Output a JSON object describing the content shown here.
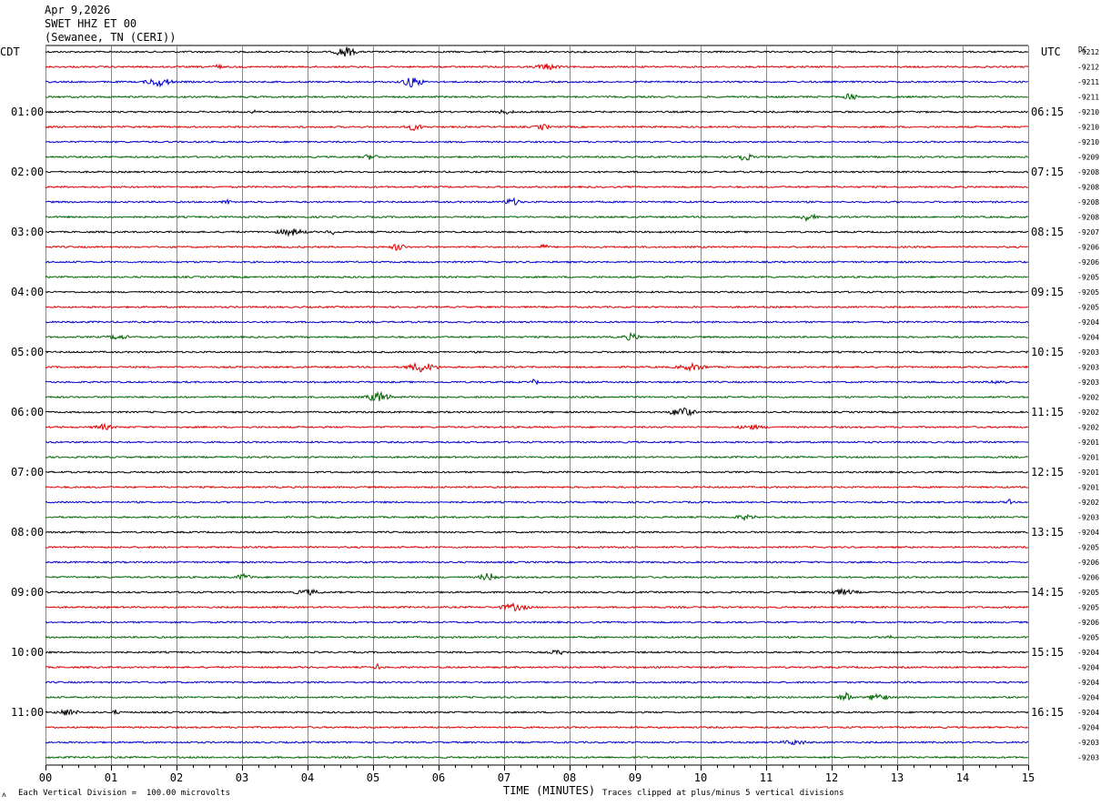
{
  "header": {
    "date": "Apr 9,2026",
    "station": "SWET HHZ ET 00",
    "location": "(Sewanee, TN (CERI))"
  },
  "left_timezone": "CDT",
  "right_timezone": "UTC",
  "dc_label": "DC",
  "footer": {
    "scale_note": "Each Vertical Division =  100.00 microvolts",
    "clip_note": "Traces clipped at plus/minus 5 vertical divisions",
    "corner_mark": "ᴧ"
  },
  "chart_data": {
    "type": "line",
    "title": "",
    "xlabel": "TIME (MINUTES)",
    "ylabel": "",
    "xlim": [
      0,
      15
    ],
    "x_ticks": [
      "00",
      "01",
      "02",
      "03",
      "04",
      "05",
      "06",
      "07",
      "08",
      "09",
      "10",
      "11",
      "12",
      "13",
      "14",
      "15"
    ],
    "grid": "vertical lines at each minute",
    "trace_colors": [
      "#000000",
      "#dd0000",
      "#0000cc",
      "#006600"
    ],
    "left_hour_labels": [
      "01:00",
      "02:00",
      "03:00",
      "04:00",
      "05:00",
      "06:00",
      "07:00",
      "08:00",
      "09:00",
      "10:00",
      "11:00"
    ],
    "right_hour_labels": [
      "06:15",
      "07:15",
      "08:15",
      "09:15",
      "10:15",
      "11:15",
      "12:15",
      "13:15",
      "14:15",
      "15:15",
      "16:15"
    ],
    "dc_offsets": [
      "-9212",
      "-9212",
      "-9211",
      "-9211",
      "-9210",
      "-9210",
      "-9210",
      "-9209",
      "-9208",
      "-9208",
      "-9208",
      "-9208",
      "-9207",
      "-9206",
      "-9206",
      "-9205",
      "-9205",
      "-9205",
      "-9204",
      "-9204",
      "-9203",
      "-9203",
      "-9203",
      "-9202",
      "-9202",
      "-9202",
      "-9201",
      "-9201",
      "-9201",
      "-9201",
      "-9202",
      "-9203",
      "-9204",
      "-9205",
      "-9206",
      "-9206",
      "-9205",
      "-9205",
      "-9206",
      "-9205",
      "-9204",
      "-9204",
      "-9204",
      "-9204",
      "-9204",
      "-9204",
      "-9203",
      "-9203"
    ],
    "num_traces": 48
  }
}
